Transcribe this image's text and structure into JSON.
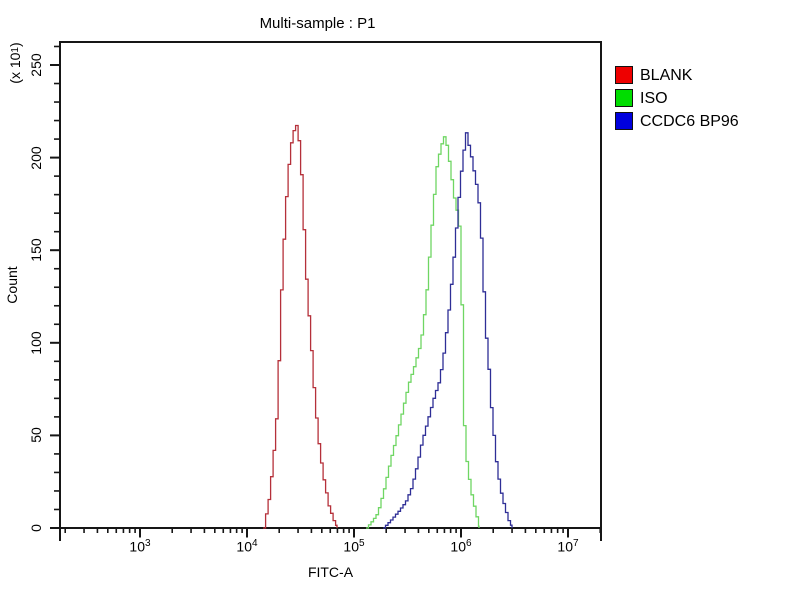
{
  "figure": {
    "background": "#ffffff",
    "frame_color": "#161616",
    "tick_color": "#161616"
  },
  "chart_data": {
    "type": "line",
    "subtype": "flow-cytometry-histogram-overlay",
    "title": "Multi-sample : P1",
    "xlabel": "FITC-A",
    "ylabel": "Count",
    "y_multiplier_label": {
      "open": "(x 10",
      "exp": "1",
      "close": ")"
    },
    "x_scale": "log10",
    "x_log_range": [
      2.24,
      7.32
    ],
    "x_tick_exponents": [
      3,
      4,
      5,
      6,
      7
    ],
    "x_tick_base": "10",
    "x_minor_multiples": [
      2,
      3,
      4,
      5,
      6,
      7,
      8,
      9
    ],
    "y_range": [
      0,
      263
    ],
    "y_ticks": [
      0,
      50,
      100,
      150,
      200,
      250
    ],
    "y_minor_step": 10,
    "grid": "off",
    "legend_position": "right-outside",
    "series": [
      {
        "name": "BLANK",
        "legend_color": "#ee0000",
        "line_color": "#b5303a",
        "peak_x_approx": 28000,
        "peak_count": 219,
        "points": [
          [
            4.15,
            0
          ],
          [
            4.196,
            15
          ],
          [
            4.234,
            35
          ],
          [
            4.271,
            62
          ],
          [
            4.29,
            90
          ],
          [
            4.308,
            122
          ],
          [
            4.336,
            155
          ],
          [
            4.355,
            175
          ],
          [
            4.383,
            196
          ],
          [
            4.411,
            210
          ],
          [
            4.449,
            219
          ],
          [
            4.486,
            206
          ],
          [
            4.505,
            186
          ],
          [
            4.523,
            162
          ],
          [
            4.551,
            130
          ],
          [
            4.589,
            100
          ],
          [
            4.617,
            76
          ],
          [
            4.654,
            50
          ],
          [
            4.701,
            29
          ],
          [
            4.757,
            12
          ],
          [
            4.804,
            4
          ],
          [
            4.841,
            0
          ]
        ]
      },
      {
        "name": "ISO",
        "legend_color": "#00dd00",
        "line_color": "#6fd663",
        "peak_x_approx": 690000,
        "peak_count": 212,
        "points": [
          [
            5.112,
            0
          ],
          [
            5.168,
            4
          ],
          [
            5.215,
            8
          ],
          [
            5.271,
            20
          ],
          [
            5.336,
            37
          ],
          [
            5.393,
            50
          ],
          [
            5.449,
            64
          ],
          [
            5.505,
            78
          ],
          [
            5.561,
            88
          ],
          [
            5.617,
            100
          ],
          [
            5.664,
            122
          ],
          [
            5.701,
            150
          ],
          [
            5.738,
            177
          ],
          [
            5.766,
            195
          ],
          [
            5.804,
            206
          ],
          [
            5.841,
            212
          ],
          [
            5.869,
            204
          ],
          [
            5.897,
            192
          ],
          [
            5.935,
            176
          ],
          [
            5.972,
            167
          ],
          [
            5.991,
            150
          ],
          [
            6.0,
            120
          ],
          [
            6.009,
            95
          ],
          [
            6.019,
            60
          ],
          [
            6.037,
            40
          ],
          [
            6.065,
            28
          ],
          [
            6.093,
            18
          ],
          [
            6.131,
            8
          ],
          [
            6.168,
            0
          ]
        ]
      },
      {
        "name": "CCDC6 BP96",
        "legend_color": "#0000dd",
        "line_color": "#2e2e96",
        "peak_x_approx": 1100000,
        "peak_count": 215,
        "points": [
          [
            5.271,
            0
          ],
          [
            5.336,
            4
          ],
          [
            5.411,
            9
          ],
          [
            5.477,
            14
          ],
          [
            5.533,
            22
          ],
          [
            5.579,
            33
          ],
          [
            5.626,
            46
          ],
          [
            5.682,
            58
          ],
          [
            5.738,
            70
          ],
          [
            5.794,
            80
          ],
          [
            5.841,
            98
          ],
          [
            5.879,
            118
          ],
          [
            5.916,
            140
          ],
          [
            5.953,
            165
          ],
          [
            5.981,
            185
          ],
          [
            6.009,
            200
          ],
          [
            6.028,
            208
          ],
          [
            6.037,
            215
          ],
          [
            6.056,
            209
          ],
          [
            6.084,
            202
          ],
          [
            6.121,
            190
          ],
          [
            6.15,
            181
          ],
          [
            6.168,
            170
          ],
          [
            6.187,
            152
          ],
          [
            6.206,
            127
          ],
          [
            6.224,
            106
          ],
          [
            6.252,
            86
          ],
          [
            6.271,
            68
          ],
          [
            6.299,
            50
          ],
          [
            6.327,
            33
          ],
          [
            6.364,
            20
          ],
          [
            6.402,
            11
          ],
          [
            6.439,
            4
          ],
          [
            6.477,
            0
          ]
        ]
      }
    ]
  }
}
